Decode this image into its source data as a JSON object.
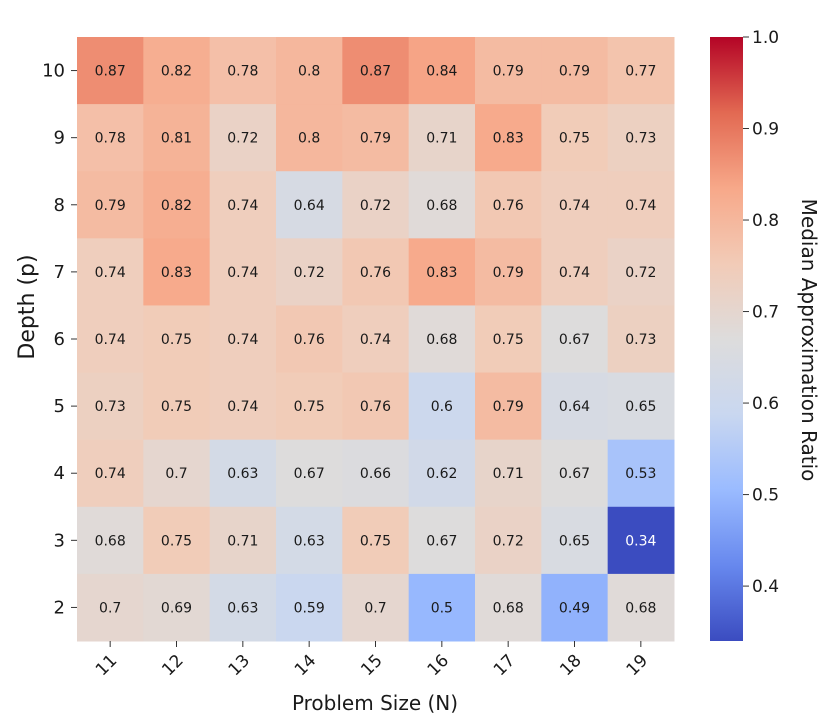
{
  "chart_data": {
    "type": "heatmap",
    "title": "",
    "xlabel": "Problem Size (N)",
    "ylabel": "Depth (p)",
    "x_categories": [
      "11",
      "12",
      "13",
      "14",
      "15",
      "16",
      "17",
      "18",
      "19"
    ],
    "y_categories": [
      "10",
      "9",
      "8",
      "7",
      "6",
      "5",
      "4",
      "3",
      "2"
    ],
    "values": [
      [
        0.87,
        0.82,
        0.78,
        0.8,
        0.87,
        0.84,
        0.79,
        0.79,
        0.77
      ],
      [
        0.78,
        0.81,
        0.72,
        0.8,
        0.79,
        0.71,
        0.83,
        0.75,
        0.73
      ],
      [
        0.79,
        0.82,
        0.74,
        0.64,
        0.72,
        0.68,
        0.76,
        0.74,
        0.74
      ],
      [
        0.74,
        0.83,
        0.74,
        0.72,
        0.76,
        0.83,
        0.79,
        0.74,
        0.72
      ],
      [
        0.74,
        0.75,
        0.74,
        0.76,
        0.74,
        0.68,
        0.75,
        0.67,
        0.73
      ],
      [
        0.73,
        0.75,
        0.74,
        0.75,
        0.76,
        0.6,
        0.79,
        0.64,
        0.65
      ],
      [
        0.74,
        0.7,
        0.63,
        0.67,
        0.66,
        0.62,
        0.71,
        0.67,
        0.53
      ],
      [
        0.68,
        0.75,
        0.71,
        0.63,
        0.75,
        0.67,
        0.72,
        0.65,
        0.34
      ],
      [
        0.7,
        0.69,
        0.63,
        0.59,
        0.7,
        0.5,
        0.68,
        0.49,
        0.68
      ]
    ],
    "colorbar": {
      "label": "Median Approximation Ratio",
      "min": 0.34,
      "max": 1.0,
      "ticks": [
        "0.4",
        "0.5",
        "0.6",
        "0.7",
        "0.8",
        "0.9",
        "1.0"
      ],
      "colormap": "coolwarm"
    },
    "colormap_stops": [
      "#3b4cc0",
      "#6788ee",
      "#9abbff",
      "#c9d7f0",
      "#dddcdc",
      "#f2cbb7",
      "#f7a889",
      "#e26952",
      "#b40426"
    ],
    "grid": false
  }
}
